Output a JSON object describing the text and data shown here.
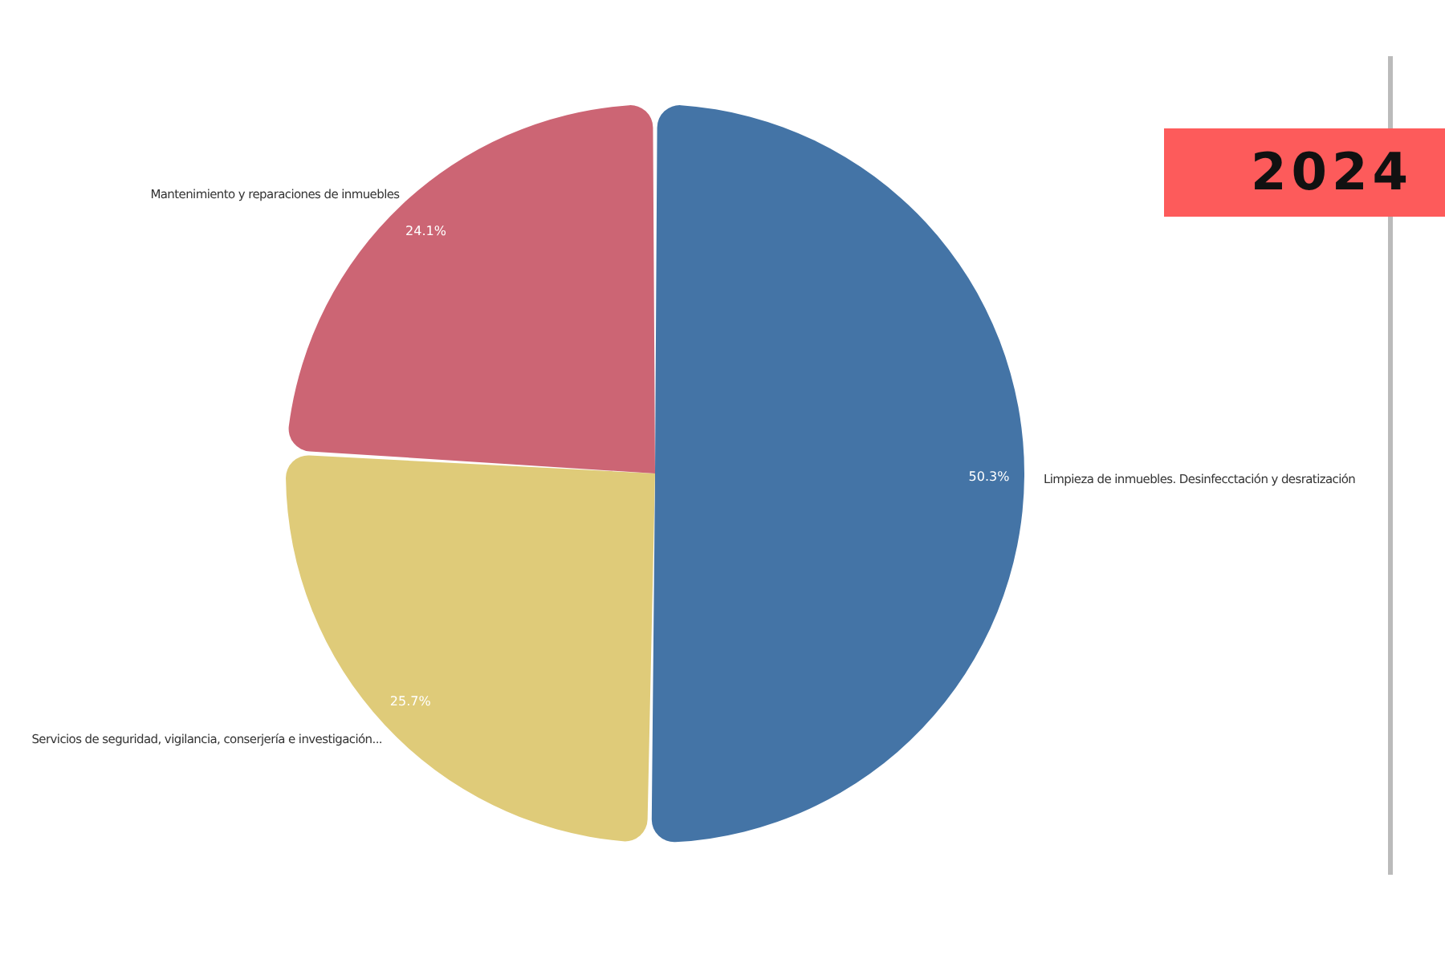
{
  "chart_data": {
    "type": "pie",
    "title": "2024",
    "categories": [
      "Limpieza de inmuebles. Desinfecctación y desratización",
      "Servicios de seguridad, vigilancia, conserjería e investigación...",
      "Mantenimiento y reparaciones de inmuebles"
    ],
    "values": [
      50.3,
      25.7,
      24.1
    ],
    "colors": [
      "#4474a6",
      "#dfcb79",
      "#cc6574"
    ],
    "value_labels": [
      "50.3%",
      "25.7%",
      "24.1%"
    ],
    "legend": false
  }
}
